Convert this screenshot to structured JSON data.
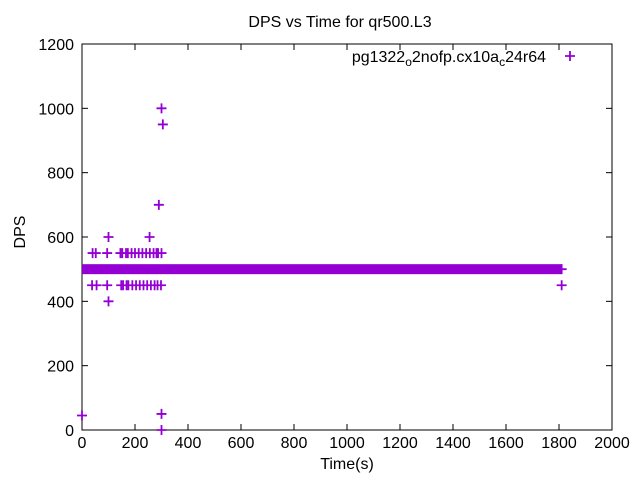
{
  "page": {
    "background": "#ffffff",
    "kind": "gnuplot-style chart"
  },
  "chart_data": {
    "type": "scatter",
    "title": "DPS vs Time for qr500.L3",
    "xlabel": "Time(s)",
    "ylabel": "DPS",
    "xlim": [
      0,
      2000
    ],
    "ylim": [
      0,
      1200
    ],
    "xticks": [
      0,
      200,
      400,
      600,
      800,
      1000,
      1200,
      1400,
      1600,
      1800,
      2000
    ],
    "yticks": [
      0,
      200,
      400,
      600,
      800,
      1000,
      1200
    ],
    "grid": false,
    "border_color": "#000000",
    "legend_position": "top-right-inside",
    "series": [
      {
        "name": "pg1322_o2nofp.cx10a_c24r64",
        "name_segments": [
          {
            "text": "pg1322",
            "sub": false
          },
          {
            "text": "o",
            "sub": true
          },
          {
            "text": "2nofp.cx10a",
            "sub": false
          },
          {
            "text": "c",
            "sub": true
          },
          {
            "text": "24r64",
            "sub": false
          }
        ],
        "marker": "plus",
        "color": "#9400d3",
        "band": {
          "dps": 500,
          "t_start": 0,
          "t_end": 1810,
          "note": "dense overlapping samples at ~500 DPS forming a solid bar"
        },
        "points": [
          [
            0,
            45
          ],
          [
            300,
            0
          ],
          [
            300,
            50
          ],
          [
            100,
            400
          ],
          [
            100,
            600
          ],
          [
            255,
            600
          ],
          [
            290,
            700
          ],
          [
            305,
            950
          ],
          [
            300,
            1000
          ],
          [
            40,
            550
          ],
          [
            52,
            550
          ],
          [
            95,
            550
          ],
          [
            145,
            550
          ],
          [
            152,
            550
          ],
          [
            166,
            550
          ],
          [
            173,
            550
          ],
          [
            187,
            550
          ],
          [
            200,
            550
          ],
          [
            214,
            550
          ],
          [
            228,
            550
          ],
          [
            242,
            550
          ],
          [
            256,
            550
          ],
          [
            270,
            550
          ],
          [
            281,
            550
          ],
          [
            287,
            550
          ],
          [
            300,
            550
          ],
          [
            38,
            450
          ],
          [
            55,
            450
          ],
          [
            95,
            450
          ],
          [
            148,
            450
          ],
          [
            155,
            450
          ],
          [
            168,
            450
          ],
          [
            175,
            450
          ],
          [
            190,
            450
          ],
          [
            204,
            450
          ],
          [
            218,
            450
          ],
          [
            232,
            450
          ],
          [
            246,
            450
          ],
          [
            260,
            450
          ],
          [
            274,
            450
          ],
          [
            285,
            450
          ],
          [
            298,
            450
          ],
          [
            1810,
            450
          ]
        ]
      }
    ]
  }
}
